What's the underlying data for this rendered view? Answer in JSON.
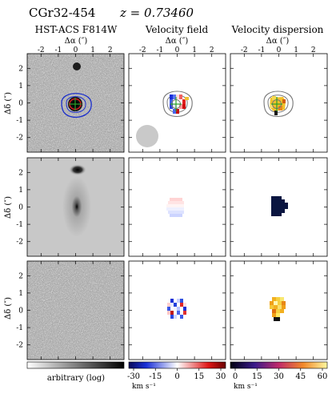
{
  "header": {
    "object": "CGr32-454",
    "redshift": "z = 0.73460"
  },
  "columns": [
    {
      "title": "HST-ACS F814W",
      "xlabel": "Δα (″)"
    },
    {
      "title": "Velocity field",
      "xlabel": "Δα (″)"
    },
    {
      "title": "Velocity dispersion",
      "xlabel": "Δα (″)"
    }
  ],
  "ylabel": "Δδ (″)",
  "x_ticks": [
    "2",
    "1",
    "0",
    "-1",
    "-2"
  ],
  "y_ticks": [
    "2",
    "1",
    "0",
    "-1",
    "-2"
  ],
  "colorbars": [
    {
      "label": "arbitrary (log)",
      "ticks": []
    },
    {
      "label": "km s⁻¹",
      "ticks": [
        "-30",
        "-15",
        "0",
        "15",
        "30"
      ]
    },
    {
      "label": "km s⁻¹",
      "ticks": [
        "0",
        "15",
        "30",
        "45",
        "60"
      ]
    }
  ],
  "colors": {
    "contour_blue": "#1a2ecc",
    "contour_red": "#d41f1f",
    "contour_gray": "#777777",
    "dispersion_model": "#0a1540",
    "psf_disk": "#c9c9c9"
  },
  "chart_data": {
    "type": "heatmap",
    "panels": [
      {
        "row": 1,
        "col": 1,
        "content": "HST-ACS F814W image with contours"
      },
      {
        "row": 1,
        "col": 2,
        "content": "observed velocity field"
      },
      {
        "row": 1,
        "col": 3,
        "content": "observed velocity dispersion"
      },
      {
        "row": 2,
        "col": 1,
        "content": "model image"
      },
      {
        "row": 2,
        "col": 2,
        "content": "model velocity field"
      },
      {
        "row": 2,
        "col": 3,
        "content": "model velocity dispersion"
      },
      {
        "row": 3,
        "col": 1,
        "content": "image residuals"
      },
      {
        "row": 3,
        "col": 2,
        "content": "velocity residuals"
      },
      {
        "row": 3,
        "col": 3,
        "content": "dispersion residuals"
      }
    ],
    "axis_range_arcsec": {
      "x": [
        2.8,
        -2.8
      ],
      "y": [
        -2.8,
        2.8
      ]
    },
    "velocity_range_kms": [
      -30,
      30
    ],
    "dispersion_range_kms": [
      0,
      60
    ]
  }
}
